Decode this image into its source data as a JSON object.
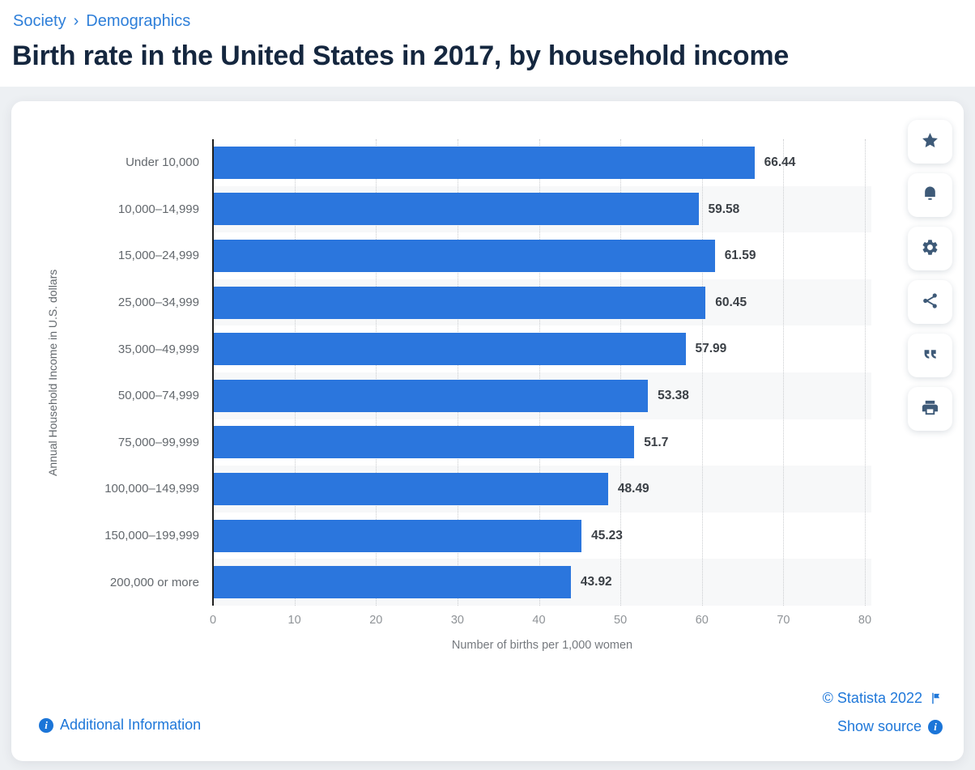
{
  "breadcrumb": {
    "items": [
      "Society",
      "Demographics"
    ],
    "separator": "›"
  },
  "page_title": "Birth rate in the United States in 2017, by household income",
  "chart_data": {
    "type": "bar",
    "orientation": "horizontal",
    "title": "Birth rate in the United States in 2017, by household income",
    "categories": [
      "Under 10,000",
      "10,000–14,999",
      "15,000–24,999",
      "25,000–34,999",
      "35,000–49,999",
      "50,000–74,999",
      "75,000–99,999",
      "100,000–149,999",
      "150,000–199,999",
      "200,000 or more"
    ],
    "values": [
      66.44,
      59.58,
      61.59,
      60.45,
      57.99,
      53.38,
      51.7,
      48.49,
      45.23,
      43.92
    ],
    "value_labels": [
      "66.44",
      "59.58",
      "61.59",
      "60.45",
      "57.99",
      "53.38",
      "51.7",
      "48.49",
      "45.23",
      "43.92"
    ],
    "xlabel": "Number of births per 1,000 women",
    "ylabel": "Annual Household Income in U.S. dollars",
    "xlim": [
      0,
      80
    ],
    "xticks": [
      0,
      10,
      20,
      30,
      40,
      50,
      60,
      70,
      80
    ],
    "grid": true,
    "legend": false,
    "bar_color": "#2b76dd"
  },
  "toolbar": {
    "buttons": [
      {
        "name": "favorite",
        "icon": "star-icon"
      },
      {
        "name": "alerts",
        "icon": "bell-icon"
      },
      {
        "name": "settings",
        "icon": "gear-icon"
      },
      {
        "name": "share",
        "icon": "share-icon"
      },
      {
        "name": "cite",
        "icon": "quote-icon"
      },
      {
        "name": "print",
        "icon": "printer-icon"
      }
    ]
  },
  "footer": {
    "additional_information": "Additional Information",
    "copyright": "© Statista 2022",
    "show_source": "Show source"
  },
  "colors": {
    "bar_blue": "#2b76dd",
    "link_blue": "#1e77d9",
    "breadcrumb_blue": "#2e7fd9",
    "title_navy": "#15273f",
    "icon_slate": "#3e5a78",
    "page_bg": "#edf0f3",
    "stripe_gray": "#f7f8f9"
  }
}
